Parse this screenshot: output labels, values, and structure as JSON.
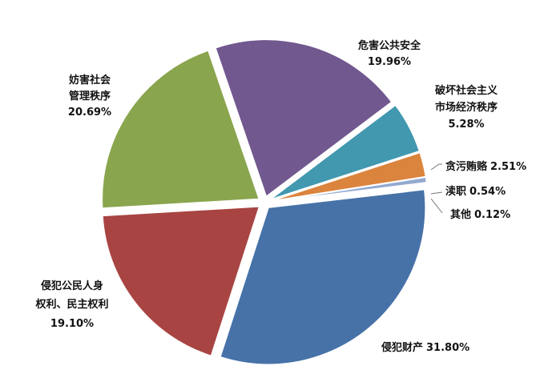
{
  "chart_data": {
    "type": "pie",
    "title": "",
    "slices": [
      {
        "label": "侵犯财产",
        "value": 31.8,
        "value_label": "31.80%",
        "color": "#4672a8"
      },
      {
        "label": "侵犯公民人身权利、民主权利",
        "value": 19.1,
        "value_label": "19.10%",
        "color": "#a84442"
      },
      {
        "label": "妨害社会管理秩序",
        "value": 20.69,
        "value_label": "20.69%",
        "color": "#89a54e"
      },
      {
        "label": "危害公共安全",
        "value": 19.96,
        "value_label": "19.96%",
        "color": "#71588f"
      },
      {
        "label": "破坏社会主义市场经济秩序",
        "value": 5.28,
        "value_label": "5.28%",
        "color": "#4198af"
      },
      {
        "label": "贪污贿赂",
        "value": 2.51,
        "value_label": "2.51%",
        "color": "#db843d"
      },
      {
        "label": "渎职",
        "value": 0.54,
        "value_label": "0.54%",
        "color": "#93a9cf"
      },
      {
        "label": "其他",
        "value": 0.12,
        "value_label": "0.12%",
        "color": "#b9cd96"
      }
    ]
  },
  "labels": {
    "property": {
      "l1": "侵犯财产",
      "value": "31.80%"
    },
    "person": {
      "l1": "侵犯公民人身",
      "l2": "权利、民主权利",
      "value": "19.10%"
    },
    "social": {
      "l1": "妨害社会",
      "l2": "管理秩序",
      "value": "20.69%"
    },
    "public": {
      "l1": "危害公共安全",
      "value": "19.96%"
    },
    "market": {
      "l1": "破坏社会主义",
      "l2": "市场经济秩序",
      "value": "5.28%"
    },
    "corruption": {
      "l1": "贪污贿赂",
      "value": "2.51%"
    },
    "dereliction": {
      "l1": "渎职",
      "value": "0.54%"
    },
    "other": {
      "l1": "其他",
      "value": "0.12%"
    }
  }
}
